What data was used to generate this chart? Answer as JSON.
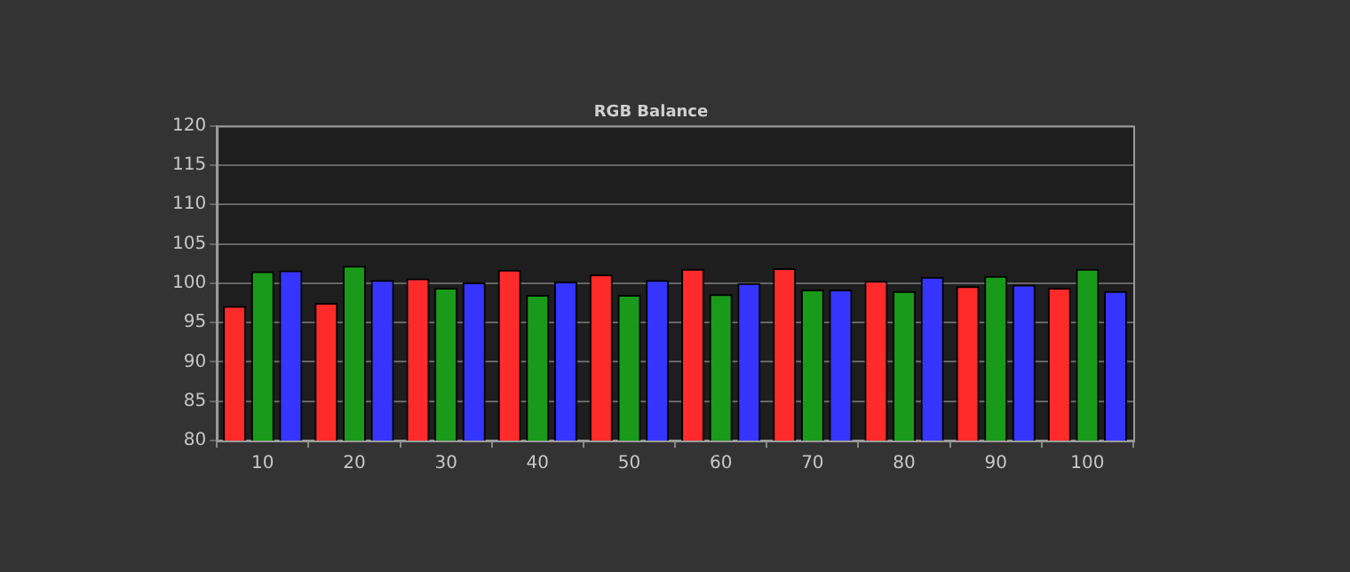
{
  "chart_data": {
    "type": "bar",
    "title": "RGB Balance",
    "categories": [
      "10",
      "20",
      "30",
      "40",
      "50",
      "60",
      "70",
      "80",
      "90",
      "100"
    ],
    "series": [
      {
        "color": "#ff2a2a",
        "values": [
          97.1,
          97.5,
          100.6,
          101.7,
          101.1,
          101.8,
          101.9,
          100.3,
          99.6,
          99.4
        ]
      },
      {
        "color": "#1a9a1a",
        "values": [
          101.5,
          102.2,
          99.4,
          98.5,
          98.5,
          98.6,
          99.2,
          99.0,
          100.9,
          101.8
        ]
      },
      {
        "color": "#3535ff",
        "values": [
          101.6,
          100.4,
          100.1,
          100.2,
          100.4,
          100.0,
          99.2,
          100.8,
          99.8,
          99.0
        ]
      }
    ],
    "ylim": [
      80,
      120
    ],
    "yticks": [
      80,
      85,
      90,
      95,
      100,
      105,
      110,
      115,
      120
    ],
    "grid": "y",
    "legend": false
  }
}
